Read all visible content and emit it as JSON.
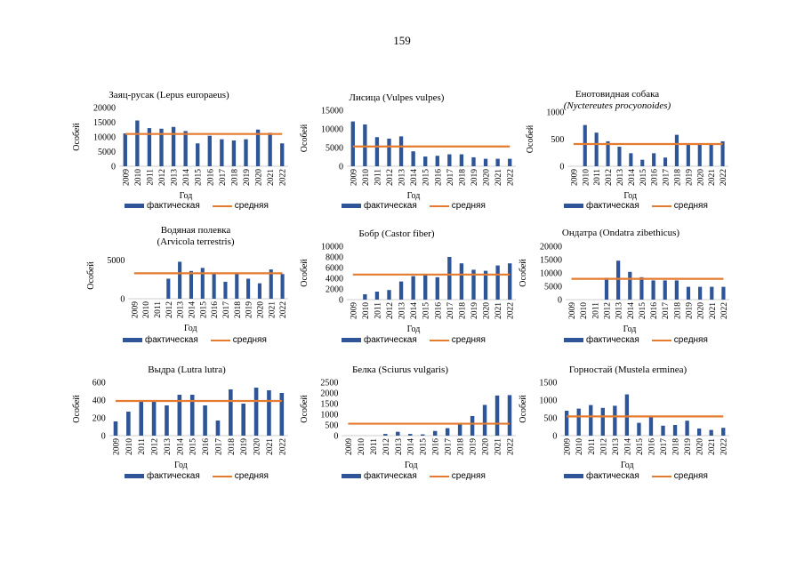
{
  "page_number": "159",
  "colors": {
    "bar": "#2e5597",
    "average_line": "#e57b2e"
  },
  "chart_data": [
    {
      "type": "bar",
      "title": "Заяц-русак (Lepus europaeus)",
      "ylabel": "Особей",
      "xlabel": "Год",
      "categories": [
        "2009",
        "2010",
        "2011",
        "2012",
        "2013",
        "2014",
        "2015",
        "2016",
        "2017",
        "2018",
        "2019",
        "2020",
        "2021",
        "2022"
      ],
      "series": [
        {
          "name": "фактическая",
          "type": "bar",
          "values": [
            11200,
            15600,
            13000,
            12800,
            13400,
            12000,
            7800,
            10400,
            9200,
            8800,
            9200,
            12500,
            11400,
            7800
          ]
        },
        {
          "name": "средняя",
          "type": "line",
          "values": [
            11000,
            11000,
            11000,
            11000,
            11000,
            11000,
            11000,
            11000,
            11000,
            11000,
            11000,
            11000,
            11000,
            11000
          ]
        }
      ],
      "yticks": [
        0,
        5000,
        10000,
        15000,
        20000
      ],
      "ylim": [
        0,
        20000
      ],
      "legend": "bottom"
    },
    {
      "type": "bar",
      "title": "Лисица (Vulpes vulpes)",
      "ylabel": "Особей",
      "xlabel": "Год",
      "categories": [
        "2009",
        "2010",
        "2011",
        "2012",
        "2013",
        "2014",
        "2015",
        "2016",
        "2017",
        "2018",
        "2019",
        "2020",
        "2021",
        "2022"
      ],
      "series": [
        {
          "name": "фактическая",
          "type": "bar",
          "values": [
            12000,
            11200,
            7800,
            7400,
            8000,
            4000,
            2600,
            2800,
            3200,
            3200,
            2400,
            2000,
            2000,
            2000
          ]
        },
        {
          "name": "средняя",
          "type": "line",
          "values": [
            5300,
            5300,
            5300,
            5300,
            5300,
            5300,
            5300,
            5300,
            5300,
            5300,
            5300,
            5300,
            5300,
            5300
          ]
        }
      ],
      "yticks": [
        0,
        5000,
        10000,
        15000
      ],
      "ylim": [
        0,
        15000
      ],
      "legend": "bottom"
    },
    {
      "type": "bar",
      "title": "Енотовидная собака (Nyctereutes procyonoides)",
      "title_lines": [
        "Енотовидная собака",
        "(Nyctereutes procyonoides)"
      ],
      "ylabel": "Особей",
      "xlabel": "Год",
      "categories": [
        "2009",
        "2010",
        "2011",
        "2012",
        "2013",
        "2014",
        "2015",
        "2016",
        "2017",
        "2018",
        "2019",
        "2020",
        "2021",
        "2022"
      ],
      "series": [
        {
          "name": "фактическая",
          "type": "bar",
          "values": [
            0,
            760,
            620,
            460,
            360,
            240,
            120,
            240,
            160,
            580,
            420,
            420,
            400,
            460
          ]
        },
        {
          "name": "средняя",
          "type": "line",
          "values": [
            410,
            410,
            410,
            410,
            410,
            410,
            410,
            410,
            410,
            410,
            410,
            410,
            410,
            410
          ]
        }
      ],
      "yticks": [
        0,
        500,
        1000
      ],
      "ylim": [
        0,
        1000
      ],
      "legend": "bottom"
    },
    {
      "type": "bar",
      "title": "Водяная полевка (Arvicola terrestris)",
      "title_lines": [
        "Водяная полевка",
        "(Arvicola terrestris)"
      ],
      "ylabel": "Особей",
      "xlabel": "Год",
      "categories": [
        "2009",
        "2010",
        "2011",
        "2012",
        "2013",
        "2014",
        "2015",
        "2016",
        "2017",
        "2018",
        "2019",
        "2020",
        "2021",
        "2022"
      ],
      "series": [
        {
          "name": "фактическая",
          "type": "bar",
          "values": [
            0,
            0,
            0,
            2600,
            4800,
            3600,
            4000,
            3200,
            2200,
            3400,
            2600,
            2000,
            3800,
            3200
          ]
        },
        {
          "name": "средняя",
          "type": "line",
          "values": [
            3300,
            3300,
            3300,
            3300,
            3300,
            3300,
            3300,
            3300,
            3300,
            3300,
            3300,
            3300,
            3300,
            3300
          ]
        }
      ],
      "yticks": [
        0,
        5000
      ],
      "ylim": [
        0,
        6000
      ],
      "legend": "bottom"
    },
    {
      "type": "bar",
      "title": "Бобр (Castor fiber)",
      "ylabel": "Особей",
      "xlabel": "Год",
      "categories": [
        "2009",
        "2010",
        "2011",
        "2012",
        "2013",
        "2014",
        "2015",
        "2016",
        "2017",
        "2018",
        "2019",
        "2020",
        "2021",
        "2022"
      ],
      "series": [
        {
          "name": "фактическая",
          "type": "bar",
          "values": [
            0,
            1000,
            1500,
            1800,
            3400,
            4400,
            4600,
            4200,
            8000,
            6800,
            5600,
            5400,
            6400,
            6800
          ]
        },
        {
          "name": "средняя",
          "type": "line",
          "values": [
            4700,
            4700,
            4700,
            4700,
            4700,
            4700,
            4700,
            4700,
            4700,
            4700,
            4700,
            4700,
            4700,
            4700
          ]
        }
      ],
      "yticks": [
        0,
        2000,
        4000,
        6000,
        8000,
        10000
      ],
      "ylim": [
        0,
        10000
      ],
      "legend": "bottom"
    },
    {
      "type": "bar",
      "title": "Ондатра (Ondatra zibethicus)",
      "ylabel": "Особей",
      "xlabel": "Год",
      "categories": [
        "2009",
        "2010",
        "2011",
        "2012",
        "2013",
        "2014",
        "2015",
        "2016",
        "2017",
        "2018",
        "2019",
        "2020",
        "2021",
        "2022"
      ],
      "series": [
        {
          "name": "фактическая",
          "type": "bar",
          "values": [
            0,
            0,
            0,
            8200,
            14600,
            10400,
            8400,
            7200,
            7200,
            7200,
            4800,
            4800,
            4800,
            4800
          ]
        },
        {
          "name": "средняя",
          "type": "line",
          "values": [
            7800,
            7800,
            7800,
            7800,
            7800,
            7800,
            7800,
            7800,
            7800,
            7800,
            7800,
            7800,
            7800,
            7800
          ]
        }
      ],
      "yticks": [
        0,
        5000,
        10000,
        15000,
        20000
      ],
      "ylim": [
        0,
        20000
      ],
      "legend": "bottom"
    },
    {
      "type": "bar",
      "title": "Выдра (Lutra lutra)",
      "ylabel": "Особей",
      "xlabel": "Год",
      "categories": [
        "2009",
        "2010",
        "2011",
        "2012",
        "2013",
        "2014",
        "2015",
        "2016",
        "2017",
        "2018",
        "2019",
        "2020",
        "2021",
        "2022"
      ],
      "series": [
        {
          "name": "фактическая",
          "type": "bar",
          "values": [
            160,
            270,
            380,
            400,
            340,
            460,
            460,
            340,
            170,
            520,
            360,
            540,
            510,
            480
          ]
        },
        {
          "name": "средняя",
          "type": "line",
          "values": [
            390,
            390,
            390,
            390,
            390,
            390,
            390,
            390,
            390,
            390,
            390,
            390,
            390,
            390
          ]
        }
      ],
      "yticks": [
        0,
        200,
        400,
        600
      ],
      "ylim": [
        0,
        600
      ],
      "legend": "bottom"
    },
    {
      "type": "bar",
      "title": "Белка (Sciurus vulgaris)",
      "ylabel": "Особей",
      "xlabel": "Год",
      "categories": [
        "2009",
        "2010",
        "2011",
        "2012",
        "2013",
        "2014",
        "2015",
        "2016",
        "2017",
        "2018",
        "2019",
        "2020",
        "2021",
        "2022"
      ],
      "series": [
        {
          "name": "фактическая",
          "type": "bar",
          "values": [
            0,
            0,
            0,
            80,
            180,
            80,
            60,
            220,
            350,
            600,
            920,
            1440,
            1880,
            1900
          ]
        },
        {
          "name": "средняя",
          "type": "line",
          "values": [
            560,
            560,
            560,
            560,
            560,
            560,
            560,
            560,
            560,
            560,
            560,
            560,
            560,
            560
          ]
        }
      ],
      "yticks": [
        0,
        500,
        1000,
        1500,
        2000,
        2500
      ],
      "ylim": [
        0,
        2500
      ],
      "legend": "bottom"
    },
    {
      "type": "bar",
      "title": "Горностай (Mustela erminea)",
      "ylabel": "Особей",
      "xlabel": "Год",
      "categories": [
        "2009",
        "2010",
        "2011",
        "2012",
        "2013",
        "2014",
        "2015",
        "2016",
        "2017",
        "2018",
        "2019",
        "2020",
        "2021",
        "2022"
      ],
      "series": [
        {
          "name": "фактическая",
          "type": "bar",
          "values": [
            700,
            760,
            860,
            780,
            840,
            1160,
            360,
            540,
            280,
            300,
            420,
            200,
            160,
            220
          ]
        },
        {
          "name": "средняя",
          "type": "line",
          "values": [
            540,
            540,
            540,
            540,
            540,
            540,
            540,
            540,
            540,
            540,
            540,
            540,
            540,
            540
          ]
        }
      ],
      "yticks": [
        0,
        500,
        1000,
        1500
      ],
      "ylim": [
        0,
        1500
      ],
      "legend": "bottom"
    }
  ]
}
